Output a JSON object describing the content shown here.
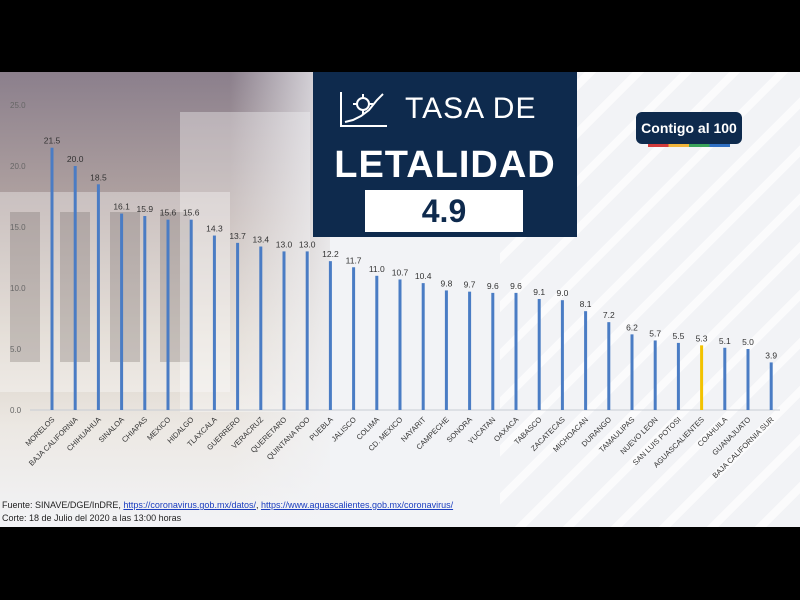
{
  "title": {
    "line1": "TASA DE",
    "line2": "LETALIDAD",
    "rate": "4.9"
  },
  "logo": {
    "text": "Contigo al 100"
  },
  "footer": {
    "source_prefix": "Fuente: SINAVE/DGE/InDRE, ",
    "link1": "https://coronavirus.gob.mx/datos/",
    "sep": ", ",
    "link2": "https://www.aguascalientes.gob.mx/coronavirus/",
    "cut": "Corte: 18 de Julio del 2020 a las 13:00 horas"
  },
  "colors": {
    "bar": "#4a7cc4",
    "highlight": "#f2c200",
    "title_bg": "#0e2a4d"
  },
  "chart_data": {
    "type": "bar",
    "title": "TASA DE LETALIDAD",
    "xlabel": "",
    "ylabel": "",
    "ylim": [
      0,
      25
    ],
    "yticks": [
      "0.0",
      "5.0",
      "10.0",
      "15.0",
      "20.0",
      "25.0"
    ],
    "grid": false,
    "highlight_category": "AGUASCALIENTES",
    "categories": [
      "MORELOS",
      "BAJA CALIFORNIA",
      "CHIHUAHUA",
      "SINALOA",
      "CHIAPAS",
      "MEXICO",
      "HIDALGO",
      "TLAXCALA",
      "GUERRERO",
      "VERACRUZ",
      "QUERETARO",
      "QUINTANA ROO",
      "PUEBLA",
      "JALISCO",
      "COLIMA",
      "CD. MEXICO",
      "NAYARIT",
      "CAMPECHE",
      "SONORA",
      "YUCATAN",
      "OAXACA",
      "TABASCO",
      "ZACATECAS",
      "MICHOACAN",
      "DURANGO",
      "TAMAULIPAS",
      "NUEVO LEON",
      "SAN LUIS POTOSI",
      "AGUASCALIENTES",
      "COAHUILA",
      "GUANAJUATO",
      "BAJA CALIFORNIA SUR"
    ],
    "values": [
      21.5,
      20.0,
      18.5,
      16.1,
      15.9,
      15.6,
      15.6,
      14.3,
      13.7,
      13.4,
      13.0,
      13.0,
      12.2,
      11.7,
      11.0,
      10.7,
      10.4,
      9.8,
      9.7,
      9.6,
      9.6,
      9.1,
      9.0,
      8.1,
      7.2,
      6.2,
      5.7,
      5.5,
      5.3,
      5.1,
      5.0,
      3.9
    ],
    "labels": [
      "21.5",
      "20.0",
      "18.5",
      "16.1",
      "15.9",
      "15.6",
      "15.6",
      "14.3",
      "13.7",
      "13.4",
      "13.0",
      "13.0",
      "12.2",
      "11.7",
      "11.0",
      "10.7",
      "10.4",
      "9.8",
      "9.7",
      "9.6",
      "9.6",
      "9.1",
      "9.0",
      "8.1",
      "7.2",
      "6.2",
      "5.7",
      "5.5",
      "5.3",
      "5.1",
      "5.0",
      "3.9"
    ]
  }
}
